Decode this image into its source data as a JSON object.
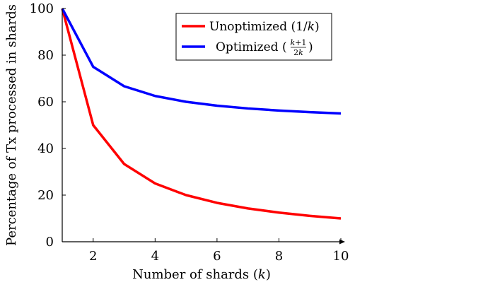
{
  "chart_data": {
    "type": "line",
    "xlabel": "Number of shards (k)",
    "ylabel": "Percentage of Tx processed in shards",
    "xlim": [
      1,
      10
    ],
    "ylim": [
      0,
      100
    ],
    "x_ticks": [
      2,
      4,
      6,
      8,
      10
    ],
    "y_ticks": [
      0,
      20,
      40,
      60,
      80,
      100
    ],
    "grid": false,
    "legend_position": "top-right",
    "x": [
      1,
      2,
      3,
      4,
      5,
      6,
      7,
      8,
      9,
      10
    ],
    "series": [
      {
        "name": "Unoptimized (1/k)",
        "color": "#ff0000",
        "values": [
          100,
          50,
          33.33,
          25,
          20,
          16.67,
          14.29,
          12.5,
          11.11,
          10
        ]
      },
      {
        "name": "Optimized ((k+1)/(2k))",
        "color": "#0000ff",
        "values": [
          100,
          75,
          66.67,
          62.5,
          60,
          58.33,
          57.14,
          56.25,
          55.56,
          55
        ]
      }
    ]
  }
}
